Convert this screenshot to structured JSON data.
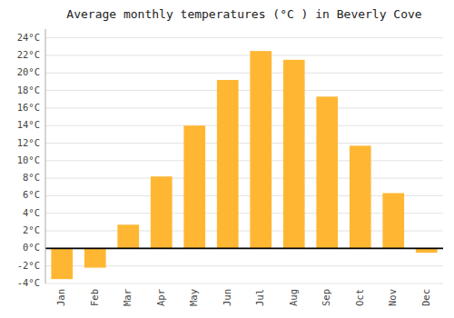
{
  "chart_data": {
    "type": "bar",
    "title": "Average monthly temperatures (°C ) in Beverly Cove",
    "categories": [
      "Jan",
      "Feb",
      "Mar",
      "Apr",
      "May",
      "Jun",
      "Jul",
      "Aug",
      "Sep",
      "Oct",
      "Nov",
      "Dec"
    ],
    "values": [
      -3.5,
      -2.2,
      2.7,
      8.2,
      14.0,
      19.2,
      22.5,
      21.5,
      17.3,
      11.7,
      6.3,
      -0.5
    ],
    "color": "#FFB733",
    "ylim": [
      -4,
      25
    ],
    "yticks": [
      {
        "value": -4,
        "label": "-4°C"
      },
      {
        "value": -2,
        "label": "-2°C"
      },
      {
        "value": 0,
        "label": "0°C"
      },
      {
        "value": 2,
        "label": "2°C"
      },
      {
        "value": 4,
        "label": "4°C"
      },
      {
        "value": 6,
        "label": "6°C"
      },
      {
        "value": 8,
        "label": "8°C"
      },
      {
        "value": 10,
        "label": "10°C"
      },
      {
        "value": 12,
        "label": "12°C"
      },
      {
        "value": 14,
        "label": "14°C"
      },
      {
        "value": 16,
        "label": "16°C"
      },
      {
        "value": 18,
        "label": "18°C"
      },
      {
        "value": 20,
        "label": "20°C"
      },
      {
        "value": 22,
        "label": "22°C"
      },
      {
        "value": 24,
        "label": "24°C"
      }
    ],
    "grid": true
  }
}
